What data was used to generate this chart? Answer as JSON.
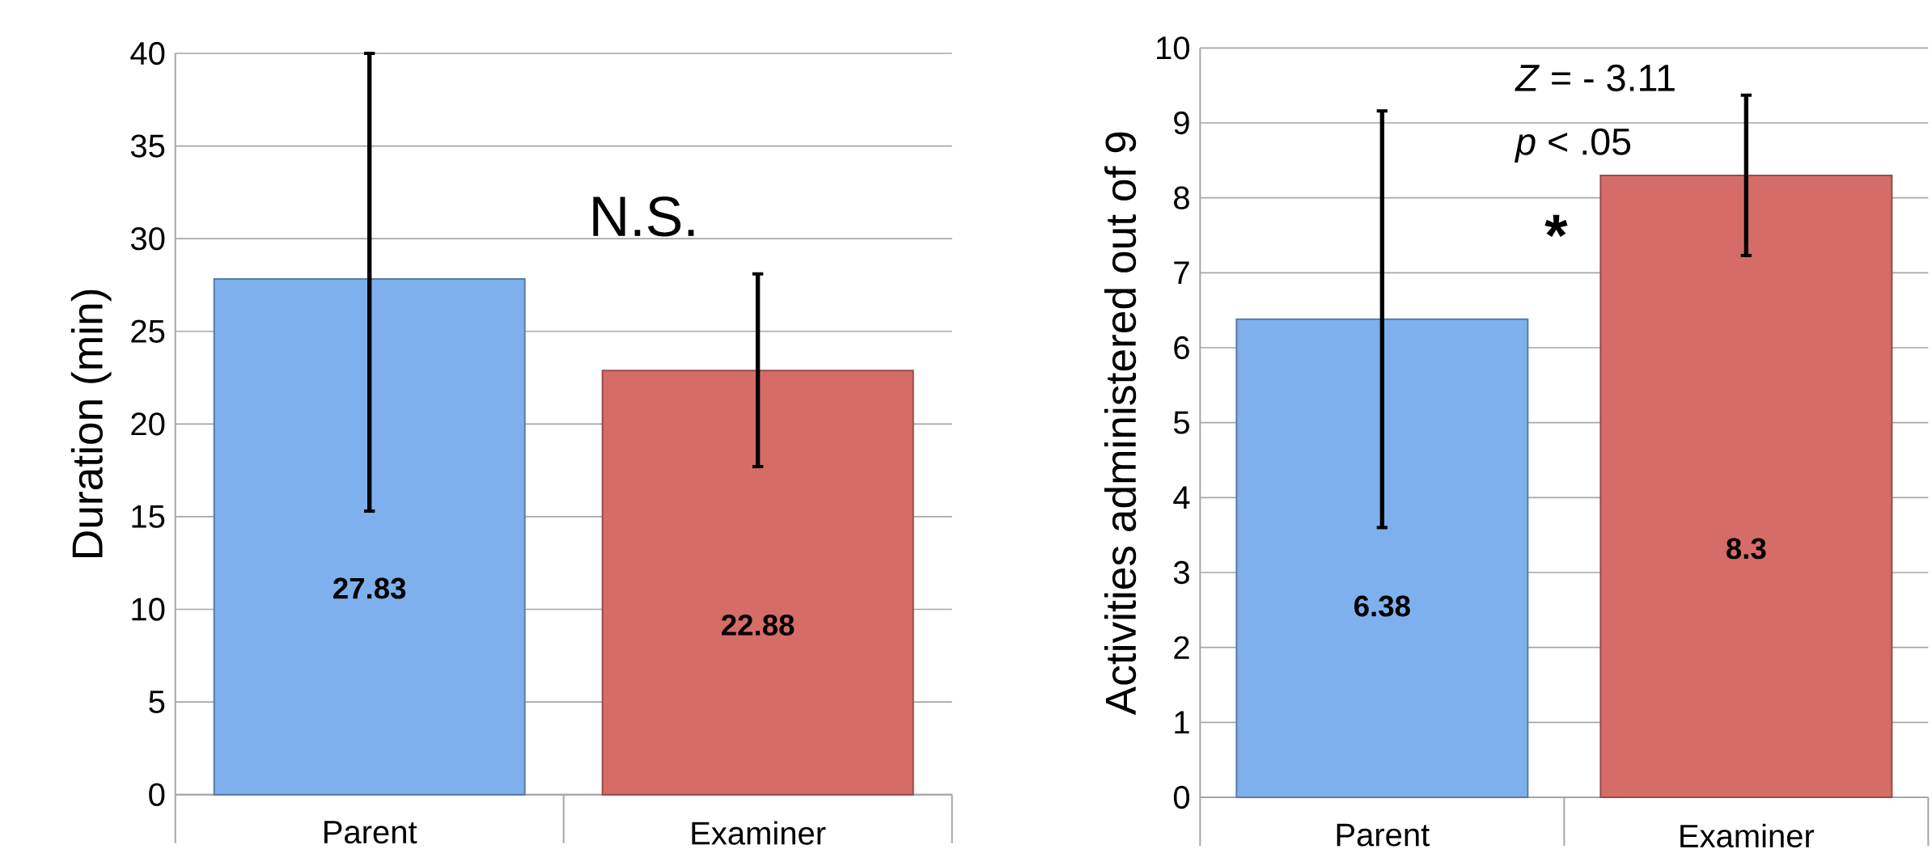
{
  "chart_data": [
    {
      "type": "bar",
      "ylabel": "Duration (min)",
      "categories": [
        "Parent",
        "Examiner"
      ],
      "values": [
        27.83,
        22.88
      ],
      "colors": [
        "#7fb0ee",
        "#d66c68"
      ],
      "errors": [
        [
          15.3,
          40
        ],
        [
          17.7,
          28.1
        ]
      ],
      "ylim": [
        0,
        40
      ],
      "yticks": [
        0,
        5,
        10,
        15,
        20,
        25,
        30,
        35,
        40
      ],
      "grid": "y",
      "data_labels": true,
      "annotations": [
        "N.S."
      ]
    },
    {
      "type": "bar",
      "ylabel": "Activities administered out of 9",
      "categories": [
        "Parent",
        "Examiner"
      ],
      "values": [
        6.38,
        8.3
      ],
      "colors": [
        "#7fb0ee",
        "#d66c68"
      ],
      "errors": [
        [
          3.6,
          9.16
        ],
        [
          7.23,
          9.37
        ]
      ],
      "ylim": [
        0,
        10
      ],
      "yticks": [
        0,
        1,
        2,
        3,
        4,
        5,
        6,
        7,
        8,
        9,
        10
      ],
      "grid": "y",
      "data_labels": true,
      "annotations": [
        "*Z* = - 3.11",
        "*p* < .05",
        "*"
      ]
    }
  ]
}
